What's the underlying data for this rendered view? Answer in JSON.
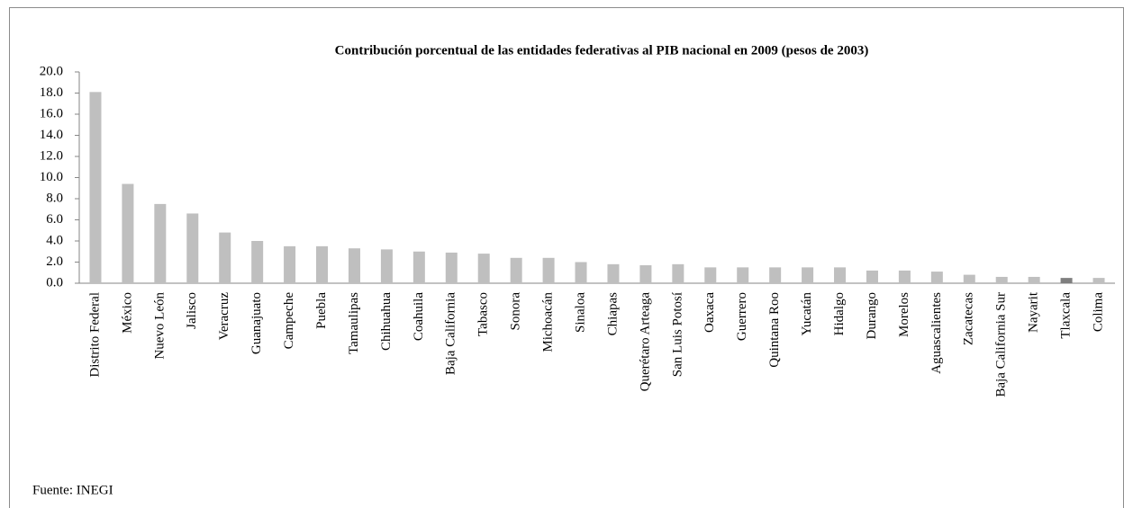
{
  "chart_data": {
    "type": "bar",
    "title": "Contribución porcentual de las entidades federativas al PIB nacional  en 2009 (pesos de 2003)",
    "categories": [
      "Distrito Federal",
      "México",
      "Nuevo León",
      "Jalisco",
      "Veracruz",
      "Guanajuato",
      "Campeche",
      "Puebla",
      "Tamaulipas",
      "Chihuahua",
      "Coahuila",
      "Baja California",
      "Tabasco",
      "Sonora",
      "Michoacán",
      "Sinaloa",
      "Chiapas",
      "Querétaro Arteaga",
      "San Luis Potosí",
      "Oaxaca",
      "Guerrero",
      "Quintana Roo",
      "Yucatán",
      "Hidalgo",
      "Durango",
      "Morelos",
      "Aguascalientes",
      "Zacatecas",
      "Baja California Sur",
      "Nayarit",
      "Tlaxcala",
      "Colima"
    ],
    "values": [
      18.1,
      9.4,
      7.5,
      6.6,
      4.8,
      4.0,
      3.5,
      3.5,
      3.3,
      3.2,
      3.0,
      2.9,
      2.8,
      2.4,
      2.4,
      2.0,
      1.8,
      1.7,
      1.8,
      1.5,
      1.5,
      1.5,
      1.5,
      1.5,
      1.2,
      1.2,
      1.1,
      0.8,
      0.6,
      0.6,
      0.5,
      0.5
    ],
    "colors": [
      "#bfbfbf",
      "#bfbfbf",
      "#bfbfbf",
      "#bfbfbf",
      "#bfbfbf",
      "#bfbfbf",
      "#bfbfbf",
      "#bfbfbf",
      "#bfbfbf",
      "#bfbfbf",
      "#bfbfbf",
      "#bfbfbf",
      "#bfbfbf",
      "#bfbfbf",
      "#bfbfbf",
      "#bfbfbf",
      "#bfbfbf",
      "#bfbfbf",
      "#bfbfbf",
      "#bfbfbf",
      "#bfbfbf",
      "#bfbfbf",
      "#bfbfbf",
      "#bfbfbf",
      "#bfbfbf",
      "#bfbfbf",
      "#bfbfbf",
      "#bfbfbf",
      "#bfbfbf",
      "#bfbfbf",
      "#7f7f7f",
      "#bfbfbf"
    ],
    "ylim": [
      0,
      20
    ],
    "yticks": [
      {
        "value": 0,
        "label": "0.0"
      },
      {
        "value": 2,
        "label": "2.0"
      },
      {
        "value": 4,
        "label": "4.0"
      },
      {
        "value": 6,
        "label": "6.0"
      },
      {
        "value": 8,
        "label": "8.0"
      },
      {
        "value": 10,
        "label": "10.0"
      },
      {
        "value": 12,
        "label": "12.0"
      },
      {
        "value": 14,
        "label": "14.0"
      },
      {
        "value": 16,
        "label": "16.0"
      },
      {
        "value": 18,
        "label": "18.0"
      },
      {
        "value": 20,
        "label": "20.0"
      }
    ],
    "grid": false,
    "source": "Fuente: INEGI"
  }
}
